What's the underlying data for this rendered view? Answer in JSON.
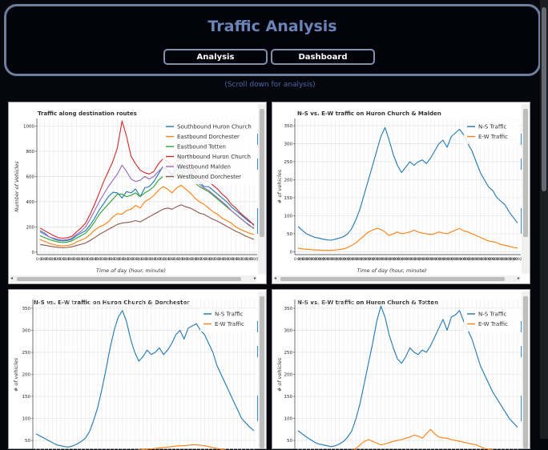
{
  "header": {
    "title": "Traffic Analysis"
  },
  "nav": {
    "analysis_label": "Analysis",
    "dashboard_label": "Dashboard"
  },
  "hint": "(Scroll down for analysis)",
  "charts": [
    {
      "title": "Traffic along destination routes",
      "xlabel": "Time of day (hour, minute)",
      "ylabel": "Number of Vehicles",
      "yticks": [
        0,
        200,
        400,
        600,
        800,
        1000
      ],
      "ylim": [
        -20,
        1060
      ],
      "tick_label": "0:00",
      "series": [
        {
          "name": "Southbound Huron Church",
          "color": "#1f77b4",
          "values": [
            170,
            150,
            120,
            105,
            92,
            88,
            92,
            102,
            130,
            150,
            170,
            215,
            270,
            335,
            385,
            440,
            475,
            470,
            430,
            480,
            470,
            500,
            440,
            510,
            520,
            560,
            620,
            680,
            650,
            600,
            680,
            700,
            670,
            640,
            590,
            560,
            520,
            520,
            490,
            460,
            430,
            400,
            360,
            330,
            300,
            270,
            240,
            220
          ]
        },
        {
          "name": "Eastbound Dorchester",
          "color": "#ff7f0e",
          "values": [
            100,
            85,
            70,
            60,
            52,
            50,
            52,
            60,
            80,
            95,
            110,
            140,
            175,
            200,
            215,
            240,
            280,
            305,
            300,
            330,
            340,
            370,
            350,
            400,
            420,
            450,
            490,
            520,
            500,
            470,
            510,
            530,
            500,
            470,
            430,
            400,
            380,
            350,
            320,
            300,
            270,
            250,
            230,
            200,
            180,
            165,
            150,
            140
          ]
        },
        {
          "name": "Eastbound Totten",
          "color": "#2ca02c",
          "values": [
            130,
            115,
            100,
            90,
            80,
            75,
            80,
            90,
            110,
            130,
            150,
            190,
            240,
            300,
            340,
            380,
            420,
            460,
            460,
            440,
            450,
            470,
            440,
            470,
            490,
            520,
            570,
            600,
            590,
            570,
            620,
            640,
            610,
            590,
            550,
            520,
            500,
            480,
            450,
            420,
            390,
            360,
            330,
            300,
            270,
            240,
            210,
            190
          ]
        },
        {
          "name": "Northbound Huron Church",
          "color": "#d62728",
          "values": [
            190,
            170,
            150,
            130,
            115,
            110,
            115,
            125,
            160,
            190,
            230,
            300,
            380,
            470,
            560,
            640,
            720,
            830,
            1040,
            920,
            760,
            700,
            650,
            630,
            620,
            640,
            700,
            740,
            720,
            680,
            720,
            740,
            700,
            680,
            640,
            600,
            570,
            560,
            530,
            500,
            460,
            430,
            380,
            350,
            310,
            280,
            250,
            210
          ]
        },
        {
          "name": "Westbound Malden",
          "color": "#9467bd",
          "values": [
            160,
            140,
            120,
            110,
            100,
            95,
            100,
            110,
            140,
            165,
            200,
            260,
            330,
            400,
            460,
            520,
            570,
            620,
            690,
            640,
            580,
            560,
            570,
            600,
            580,
            600,
            640,
            670,
            650,
            620,
            650,
            660,
            640,
            610,
            570,
            540,
            510,
            490,
            460,
            430,
            400,
            370,
            330,
            300,
            270,
            240,
            215,
            185
          ]
        },
        {
          "name": "Westbound Dorchester",
          "color": "#8c564b",
          "values": [
            60,
            55,
            48,
            42,
            38,
            35,
            37,
            42,
            52,
            62,
            72,
            92,
            115,
            140,
            160,
            180,
            200,
            220,
            230,
            235,
            240,
            250,
            240,
            260,
            280,
            300,
            320,
            340,
            350,
            340,
            360,
            375,
            360,
            350,
            330,
            310,
            300,
            280,
            260,
            245,
            225,
            205,
            185,
            165,
            150,
            130,
            115,
            100
          ]
        }
      ]
    },
    {
      "title": "N-S vs. E-W traffic on Huron Church & Malden",
      "xlabel": "Time of day (hour, minute)",
      "ylabel": "# of vehicles",
      "yticks": [
        0,
        50,
        100,
        150,
        200,
        250,
        300,
        350
      ],
      "ylim": [
        -8,
        370
      ],
      "tick_label": "0:00",
      "series": [
        {
          "name": "N-S Traffic",
          "color": "#1f77b4",
          "values": [
            70,
            60,
            50,
            45,
            40,
            38,
            35,
            33,
            32,
            35,
            38,
            42,
            50,
            65,
            90,
            120,
            160,
            200,
            240,
            280,
            320,
            345,
            310,
            270,
            240,
            220,
            235,
            250,
            240,
            250,
            255,
            245,
            260,
            280,
            300,
            310,
            290,
            320,
            330,
            340,
            325,
            300,
            280,
            250,
            220,
            200,
            180,
            170,
            150,
            140,
            130,
            110,
            95,
            80
          ]
        },
        {
          "name": "E-W Traffic",
          "color": "#ff7f0e",
          "values": [
            10,
            8,
            7,
            6,
            5,
            5,
            4,
            4,
            4,
            5,
            6,
            8,
            12,
            18,
            25,
            35,
            45,
            55,
            60,
            65,
            62,
            55,
            45,
            50,
            55,
            50,
            52,
            55,
            60,
            55,
            52,
            50,
            48,
            50,
            55,
            52,
            50,
            55,
            60,
            65,
            58,
            55,
            50,
            45,
            40,
            35,
            30,
            28,
            25,
            20,
            18,
            15,
            12,
            10
          ]
        }
      ]
    },
    {
      "title": "N-S vs. E-W traffic on Huron Church & Dorchester",
      "xlabel": "",
      "ylabel": "# of vehicles",
      "yticks": [
        50,
        100,
        150,
        200,
        250,
        300,
        350
      ],
      "ylim": [
        -8,
        370
      ],
      "tick_label": "",
      "series": [
        {
          "name": "N-S Traffic",
          "color": "#1f77b4",
          "values": [
            65,
            60,
            55,
            50,
            45,
            40,
            38,
            36,
            35,
            38,
            42,
            48,
            55,
            70,
            95,
            125,
            165,
            210,
            260,
            300,
            330,
            345,
            320,
            280,
            250,
            230,
            240,
            255,
            245,
            250,
            260,
            245,
            255,
            270,
            290,
            300,
            280,
            305,
            310,
            315,
            300,
            290,
            270,
            250,
            220,
            200,
            180,
            160,
            140,
            120,
            100,
            90,
            80,
            72
          ]
        },
        {
          "name": "E-W Traffic",
          "color": "#ff7f0e",
          "values": [
            2,
            1,
            0,
            0,
            0,
            0,
            0,
            0,
            0,
            0,
            0,
            2,
            5,
            8,
            10,
            12,
            15,
            18,
            20,
            22,
            23,
            24,
            25,
            26,
            27,
            28,
            29,
            30,
            31,
            32,
            33,
            34,
            35,
            36,
            37,
            38,
            38,
            39,
            40,
            40,
            39,
            38,
            36,
            34,
            32,
            30,
            28,
            25,
            22,
            20,
            18,
            15,
            12,
            10
          ]
        }
      ]
    },
    {
      "title": "N-S vs. E-W traffic on Huron Church & Totten",
      "xlabel": "",
      "ylabel": "# of vehicles",
      "yticks": [
        0,
        50,
        100,
        150,
        200,
        250,
        300,
        350
      ],
      "ylim": [
        -8,
        370
      ],
      "tick_label": "",
      "series": [
        {
          "name": "N-S Traffic",
          "color": "#1f77b4",
          "values": [
            72,
            65,
            58,
            52,
            46,
            42,
            40,
            38,
            36,
            38,
            42,
            48,
            58,
            72,
            100,
            135,
            180,
            225,
            270,
            320,
            355,
            330,
            290,
            260,
            235,
            225,
            240,
            260,
            250,
            245,
            255,
            250,
            265,
            285,
            305,
            325,
            300,
            330,
            335,
            345,
            320,
            300,
            280,
            250,
            220,
            200,
            180,
            160,
            145,
            130,
            115,
            100,
            90,
            80
          ]
        },
        {
          "name": "E-W Traffic",
          "color": "#ff7f0e",
          "values": [
            25,
            20,
            18,
            15,
            12,
            10,
            10,
            10,
            11,
            12,
            14,
            16,
            20,
            25,
            32,
            40,
            48,
            52,
            48,
            44,
            40,
            42,
            45,
            48,
            50,
            52,
            55,
            58,
            62,
            60,
            55,
            65,
            75,
            65,
            58,
            56,
            55,
            52,
            50,
            48,
            46,
            44,
            42,
            40,
            36,
            32,
            30,
            28,
            25,
            22,
            20,
            18,
            15,
            12
          ]
        }
      ]
    }
  ]
}
